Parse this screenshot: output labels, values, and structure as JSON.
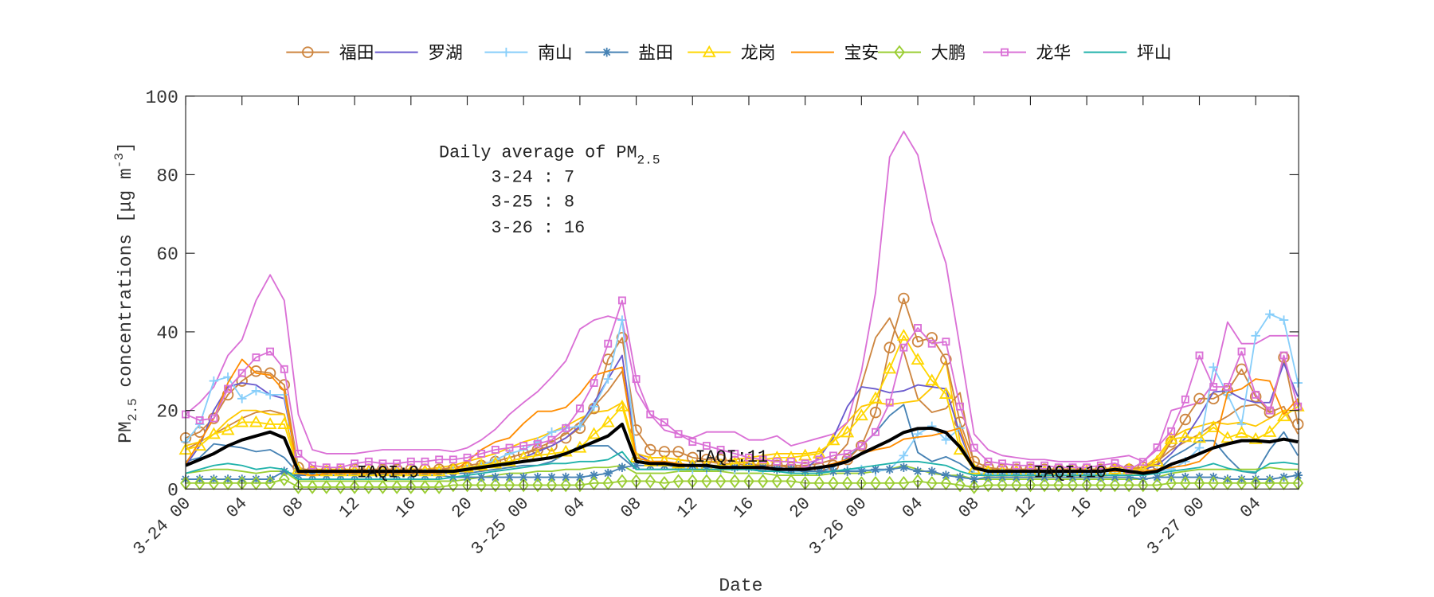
{
  "chart_data": {
    "type": "line",
    "x": {
      "start": "3-24 00",
      "interval": "1 hour",
      "count": 80
    },
    "xlabel": "Date",
    "xtick_labels": [
      "3-24 00",
      "04",
      "08",
      "12",
      "16",
      "20",
      "3-25 00",
      "04",
      "08",
      "12",
      "16",
      "20",
      "3-26 00",
      "04",
      "08",
      "12",
      "16",
      "20",
      "3-27 00",
      "04"
    ],
    "ylabel": {
      "main": "PM",
      "sub": "2.5",
      "rest": " concentrations [μg m",
      "sup": "-3",
      "end": "]"
    },
    "ylim": [
      0,
      100
    ],
    "yticks": [
      "0",
      "20",
      "40",
      "60",
      "80",
      "100"
    ],
    "grid": false,
    "legend_position": "top",
    "annotations": {
      "daily_title": "Daily average of PM",
      "daily_title_sub": "2.5",
      "daily": [
        "3-24 : 7",
        "3-25 : 8",
        "3-26 : 16"
      ],
      "iaqi": [
        "IAQI:9",
        "IAQI:11",
        "IAQI:10"
      ]
    },
    "series": [
      {
        "name": "福田",
        "color": "#CD853F",
        "marker": "circle",
        "values": [
          13,
          14.5,
          18,
          24,
          27.5,
          30,
          29.5,
          26.5,
          5.5,
          4.5,
          4.5,
          4.5,
          5,
          5,
          5,
          5,
          5,
          5,
          5,
          5,
          5.5,
          6,
          7,
          8,
          9,
          10,
          11,
          13,
          15.5,
          20.5,
          33,
          38.5,
          15,
          10,
          9.5,
          9.5,
          8,
          7.5,
          7.5,
          7,
          6.5,
          6,
          6,
          5.5,
          5.5,
          5.5,
          6,
          7.5,
          11,
          19.5,
          36,
          48.5,
          37.5,
          38.5,
          33,
          17,
          7,
          5.5,
          5,
          5,
          5,
          5,
          5,
          5,
          5,
          5,
          5,
          5,
          5.5,
          6.3,
          12,
          17.7,
          23,
          23,
          25,
          30.5,
          23.5,
          19.5,
          33.5,
          16.5
        ]
      },
      {
        "name": "罗湖",
        "color": "#6A5ACD",
        "marker": "none",
        "values": [
          6,
          11,
          20,
          26,
          27,
          26.5,
          24,
          23,
          5,
          4.5,
          4.5,
          4.5,
          4.5,
          4.5,
          4.5,
          4.5,
          4.5,
          4.5,
          4.5,
          4.5,
          5,
          5.5,
          6,
          7,
          8,
          9.5,
          11,
          13,
          16,
          22,
          28,
          34,
          9,
          7,
          7,
          6.5,
          6,
          6,
          6,
          5.5,
          5.5,
          5.5,
          5.5,
          5,
          5,
          8,
          13,
          21,
          26,
          25.5,
          24.5,
          25,
          26.5,
          26,
          25.5,
          14,
          5,
          4.5,
          4.5,
          4.5,
          4.5,
          4.5,
          4.5,
          4.5,
          4.5,
          4.5,
          4.5,
          4.5,
          5,
          6,
          9,
          13,
          18.5,
          24.7,
          25,
          23,
          22,
          22,
          32,
          23.5
        ]
      },
      {
        "name": "南山",
        "color": "#87CEFA",
        "marker": "plus",
        "values": [
          12,
          16.5,
          27.5,
          28.5,
          23,
          25,
          24,
          24,
          5,
          4,
          4,
          4,
          4,
          4,
          4,
          4,
          4,
          4,
          4,
          4.5,
          5,
          6,
          7.5,
          9,
          10,
          12,
          14.5,
          15.5,
          16,
          21,
          28,
          43,
          8,
          6,
          6,
          5.5,
          5,
          5,
          5,
          5,
          5,
          4.5,
          4.5,
          4.5,
          4.5,
          4.5,
          4.5,
          5,
          5,
          4.5,
          5,
          8.5,
          14,
          16,
          12.5,
          15.5,
          4,
          4,
          4,
          4,
          4,
          4,
          4,
          4,
          4,
          4,
          4,
          4,
          4,
          4.5,
          5,
          7,
          10.5,
          31,
          24,
          16.5,
          39,
          44.5,
          43,
          27
        ]
      },
      {
        "name": "盐田",
        "color": "#4682B4",
        "marker": "asterisk",
        "values": [
          2.5,
          2.5,
          2.5,
          2.5,
          2.5,
          2.5,
          2.5,
          4.5,
          3.5,
          3.5,
          3.5,
          3.5,
          3.5,
          3.5,
          3.5,
          3.5,
          3.5,
          3.5,
          3.5,
          3,
          3,
          3,
          3,
          3,
          3,
          3,
          3,
          3,
          3,
          3.5,
          4,
          5.5,
          6,
          6,
          6,
          6,
          6,
          5.5,
          5.5,
          5.5,
          5.5,
          5.5,
          5,
          5,
          4.5,
          4.5,
          4.5,
          4.5,
          4.5,
          5,
          5,
          5.5,
          4.5,
          4.5,
          3.5,
          3,
          2.5,
          3,
          3,
          3,
          3,
          3,
          3,
          3,
          3,
          3,
          3,
          3,
          2.5,
          3,
          3,
          3,
          3,
          3,
          2.5,
          2.5,
          2.5,
          2.5,
          3,
          3.5
        ]
      },
      {
        "name": "龙岗",
        "color": "#FFD700",
        "marker": "triangle",
        "values": [
          10,
          11,
          14,
          15,
          17,
          17,
          16.5,
          16.5,
          5,
          4.5,
          4.5,
          4.5,
          4.5,
          4.5,
          4.5,
          4.5,
          4.5,
          4.5,
          4.5,
          5,
          5.5,
          6,
          6.5,
          7,
          8,
          8.5,
          9,
          9.5,
          10.5,
          14,
          17,
          21,
          8,
          7,
          7,
          6.5,
          6,
          6,
          6,
          6.5,
          7,
          7.5,
          8,
          8,
          8.5,
          9,
          12.4,
          14.4,
          18.7,
          23.1,
          30.6,
          39,
          32.9,
          27.6,
          24.2,
          10,
          5,
          4.5,
          4.5,
          4.5,
          4.5,
          4.5,
          4.5,
          4.5,
          4.5,
          4.5,
          5,
          5,
          5,
          7,
          12.7,
          13.2,
          13,
          15.7,
          13,
          14.3,
          12.7,
          14.5,
          18.5,
          21
        ]
      },
      {
        "name": "宝安",
        "color": "#FF8C00",
        "marker": "none",
        "values": [
          6.5,
          12,
          18,
          27,
          33,
          29.5,
          29,
          25,
          4,
          3.5,
          4,
          4,
          4,
          4,
          4,
          4,
          4,
          4,
          4,
          4.5,
          7,
          10,
          12,
          13,
          16.7,
          19.8,
          19.8,
          20.8,
          24.2,
          28.9,
          30,
          31,
          8,
          7,
          7,
          6.5,
          6,
          6,
          5.5,
          5.5,
          5.5,
          5.5,
          5,
          5,
          5,
          5.5,
          6.5,
          7.5,
          9,
          10,
          10.7,
          12.7,
          13.2,
          13.6,
          14.5,
          15.5,
          5,
          4.5,
          4.5,
          4.5,
          4.5,
          4.5,
          4.5,
          4.5,
          4.5,
          4.5,
          4.5,
          4.5,
          4.5,
          5,
          5.5,
          6,
          7,
          10.5,
          24.5,
          25.5,
          28,
          27.5,
          19,
          23
        ]
      },
      {
        "name": "大鹏",
        "color": "#9ACD32",
        "marker": "diamond",
        "values": [
          1.5,
          1.5,
          1.5,
          1.5,
          1.5,
          1.5,
          1.5,
          2.5,
          0.5,
          0.5,
          0.5,
          0.5,
          0.5,
          0.5,
          0.5,
          0.5,
          0.5,
          0.5,
          0.5,
          1,
          1,
          1,
          1,
          1,
          1,
          1,
          1,
          1,
          1,
          1.5,
          1.5,
          2,
          2,
          2,
          1.5,
          2,
          2,
          2,
          2,
          2,
          2,
          2,
          2,
          2,
          1.5,
          1.5,
          1.5,
          1.5,
          1.5,
          1.5,
          1.5,
          1.5,
          2,
          1.5,
          1.5,
          1,
          0.5,
          1,
          1,
          1,
          1,
          1,
          1,
          1,
          1,
          1,
          1,
          1,
          1,
          1,
          1.5,
          1.5,
          1.5,
          1.5,
          1.5,
          1.5,
          1.5,
          1.5,
          1.5,
          1.5
        ]
      },
      {
        "name": "龙华",
        "color": "#DA70D6",
        "marker": "square",
        "values": [
          19,
          17.5,
          18,
          25.5,
          29.5,
          33.5,
          35,
          30.5,
          9,
          6,
          5.5,
          5.5,
          6.5,
          7,
          6.5,
          6.5,
          7,
          7,
          7.5,
          7.5,
          8,
          9,
          10,
          10.5,
          11,
          11.5,
          12.5,
          15.5,
          20.5,
          27,
          37,
          48,
          28,
          19,
          17,
          14,
          12,
          11,
          10,
          9,
          8,
          7.5,
          7,
          7,
          6.5,
          7.5,
          8.5,
          9,
          11,
          14.5,
          22,
          36,
          41,
          37,
          37.5,
          21,
          10.5,
          7,
          6.5,
          6,
          6,
          6,
          5.5,
          5.5,
          5.5,
          6,
          6.6,
          4.9,
          6.9,
          10.6,
          14.7,
          22.8,
          34,
          26,
          26,
          35,
          24,
          20,
          34,
          21
        ]
      },
      {
        "name": "坪山",
        "color": "#20B2AA",
        "marker": "none",
        "values": [
          4,
          5,
          6,
          6.5,
          6,
          5,
          5.5,
          5,
          2.5,
          2.5,
          2.5,
          2.5,
          2.5,
          2.5,
          2.5,
          2.5,
          2.5,
          2.5,
          2.5,
          3,
          3.5,
          4,
          4.5,
          5,
          5.5,
          6,
          6.5,
          6.5,
          7,
          7,
          7.5,
          9.5,
          5,
          5,
          5,
          5,
          5,
          5,
          5,
          5,
          5,
          4.5,
          4.5,
          4,
          4,
          4,
          4.5,
          5,
          5.5,
          6,
          6.5,
          7,
          7,
          6.5,
          6,
          4.5,
          3.5,
          3.5,
          3.5,
          3.5,
          3.5,
          3.5,
          3.5,
          3.5,
          3.5,
          3.5,
          3.5,
          3.5,
          3.5,
          4,
          4.5,
          5,
          5.5,
          6.5,
          5.3,
          4.5,
          4.3,
          6.5,
          6.8,
          6.3
        ]
      }
    ],
    "extra_lines": [
      {
        "color": "#CD853F",
        "values": [
          10,
          12,
          14,
          16,
          18,
          19.5,
          20,
          19,
          5,
          4.5,
          4.5,
          4.5,
          4.5,
          4.5,
          5,
          5,
          5,
          5,
          5,
          5.5,
          6,
          6.5,
          7,
          8,
          9,
          10.5,
          12,
          14,
          17,
          21,
          25,
          30,
          9,
          8,
          8,
          7.5,
          7,
          7,
          6.5,
          6.5,
          6,
          6,
          6,
          6,
          6,
          6.5,
          7.5,
          11.5,
          26.5,
          38.5,
          43.5,
          35,
          23,
          19.5,
          20.5,
          24.5,
          6,
          5,
          5,
          5,
          5,
          5,
          5,
          5,
          5,
          5,
          5,
          5,
          5.5,
          7,
          10,
          12,
          14,
          16.5,
          18.5,
          21,
          21.5,
          19.5,
          21,
          14
        ]
      },
      {
        "color": "#4682B4",
        "values": [
          7,
          8,
          11.5,
          11,
          10.5,
          9.5,
          10,
          8,
          4,
          4,
          4,
          4,
          4,
          4,
          4,
          4,
          4,
          4,
          4,
          4,
          4,
          4.5,
          5,
          5.5,
          6,
          6,
          7,
          9,
          11,
          11,
          11,
          8,
          5,
          5,
          5,
          5,
          5,
          5,
          5,
          5,
          5,
          5,
          5,
          5,
          4.5,
          4.5,
          5.5,
          8,
          11,
          14.4,
          18.7,
          21.5,
          9.3,
          7,
          8.2,
          6.5,
          4,
          3.5,
          3.5,
          3.5,
          3.5,
          3.5,
          3.5,
          3.5,
          3.5,
          3.5,
          3.5,
          3.5,
          3.5,
          4.5,
          8,
          10,
          12.3,
          12.3,
          8,
          4.5,
          4,
          10,
          14.5,
          8.5
        ]
      },
      {
        "color": "#FFC800",
        "values": [
          11,
          12,
          14,
          17.5,
          20,
          20,
          19,
          19,
          5,
          5,
          5,
          5,
          5,
          5,
          5,
          5,
          5,
          5,
          5.5,
          6,
          7,
          8,
          9,
          10.5,
          12,
          13,
          14.5,
          16,
          18,
          19.5,
          20,
          22,
          9,
          8,
          8,
          7.5,
          7,
          7,
          7,
          7.5,
          8,
          8.5,
          9,
          9,
          9,
          9.5,
          12,
          17,
          21,
          22,
          21.5,
          22,
          22.5,
          25.8,
          32.6,
          12,
          5.5,
          5,
          5,
          5,
          5,
          5,
          5,
          5,
          5,
          5,
          5.5,
          5.5,
          5.5,
          8,
          13,
          15,
          16,
          17,
          16.5,
          17,
          16,
          18,
          20,
          20
        ]
      },
      {
        "color": "#9ACD32",
        "values": [
          4,
          4.5,
          5,
          5,
          4.5,
          4,
          4.5,
          4.5,
          2,
          2,
          2,
          2,
          2,
          2,
          2,
          2,
          2,
          2,
          2,
          2,
          2.5,
          3,
          3.5,
          4,
          4,
          4.5,
          4.5,
          5,
          5,
          5.5,
          5.5,
          6,
          4,
          4,
          4,
          4.5,
          4.5,
          4.5,
          4.5,
          4,
          4,
          4,
          3.5,
          3.5,
          3.5,
          3.5,
          4,
          4,
          4,
          4.5,
          5,
          6,
          5,
          4,
          3.5,
          3.5,
          2.5,
          2.5,
          2.5,
          2.5,
          2.5,
          2.5,
          2.5,
          2.5,
          2.5,
          2.5,
          2.5,
          2.5,
          2.5,
          3,
          4,
          4.5,
          5,
          5,
          5,
          5,
          5,
          5.5,
          5,
          5
        ]
      },
      {
        "color": "#DA70D6",
        "values": [
          19,
          22,
          26,
          34,
          38,
          48,
          54.5,
          48,
          19,
          10,
          9,
          9,
          9,
          9.5,
          10,
          10,
          10,
          10,
          10,
          9.5,
          10.5,
          12.5,
          15.2,
          19,
          22,
          24.8,
          28.5,
          32.6,
          40.7,
          43,
          44,
          43,
          25,
          19,
          15,
          14,
          13,
          14.5,
          14.5,
          14.5,
          12.5,
          12.5,
          13.5,
          11,
          12,
          13,
          14,
          17,
          30,
          50,
          84.5,
          91,
          85,
          68,
          57.5,
          36,
          14,
          10,
          8.5,
          8,
          7.5,
          7.5,
          7,
          7,
          7,
          7.5,
          8,
          8.5,
          7,
          10,
          20,
          21,
          22,
          27,
          42.5,
          37,
          37,
          39,
          39,
          39
        ]
      },
      {
        "color": "#000000",
        "width": 3.5,
        "values": [
          6,
          7.5,
          9,
          11,
          12.5,
          13.5,
          14.5,
          13,
          4.5,
          4.5,
          4.5,
          4.5,
          4.5,
          4.5,
          4.5,
          4.5,
          4.5,
          4.5,
          4.5,
          4.5,
          5,
          5.5,
          6,
          6.5,
          7,
          7.5,
          8,
          9,
          10.5,
          12,
          13.5,
          16.5,
          7,
          6.5,
          6.5,
          6,
          6,
          6,
          5.5,
          5.5,
          5.5,
          5.5,
          5,
          5,
          5,
          5.5,
          6,
          7,
          9,
          10.7,
          12.4,
          14.4,
          15.4,
          15.5,
          14.4,
          10.7,
          5.4,
          4.5,
          4.5,
          4.5,
          4.5,
          4.5,
          4.5,
          4.5,
          4.5,
          4.5,
          5,
          4.5,
          4,
          4.5,
          6.3,
          7.5,
          9,
          10.5,
          11.5,
          12.3,
          12.3,
          12,
          12.7,
          12
        ]
      }
    ]
  }
}
